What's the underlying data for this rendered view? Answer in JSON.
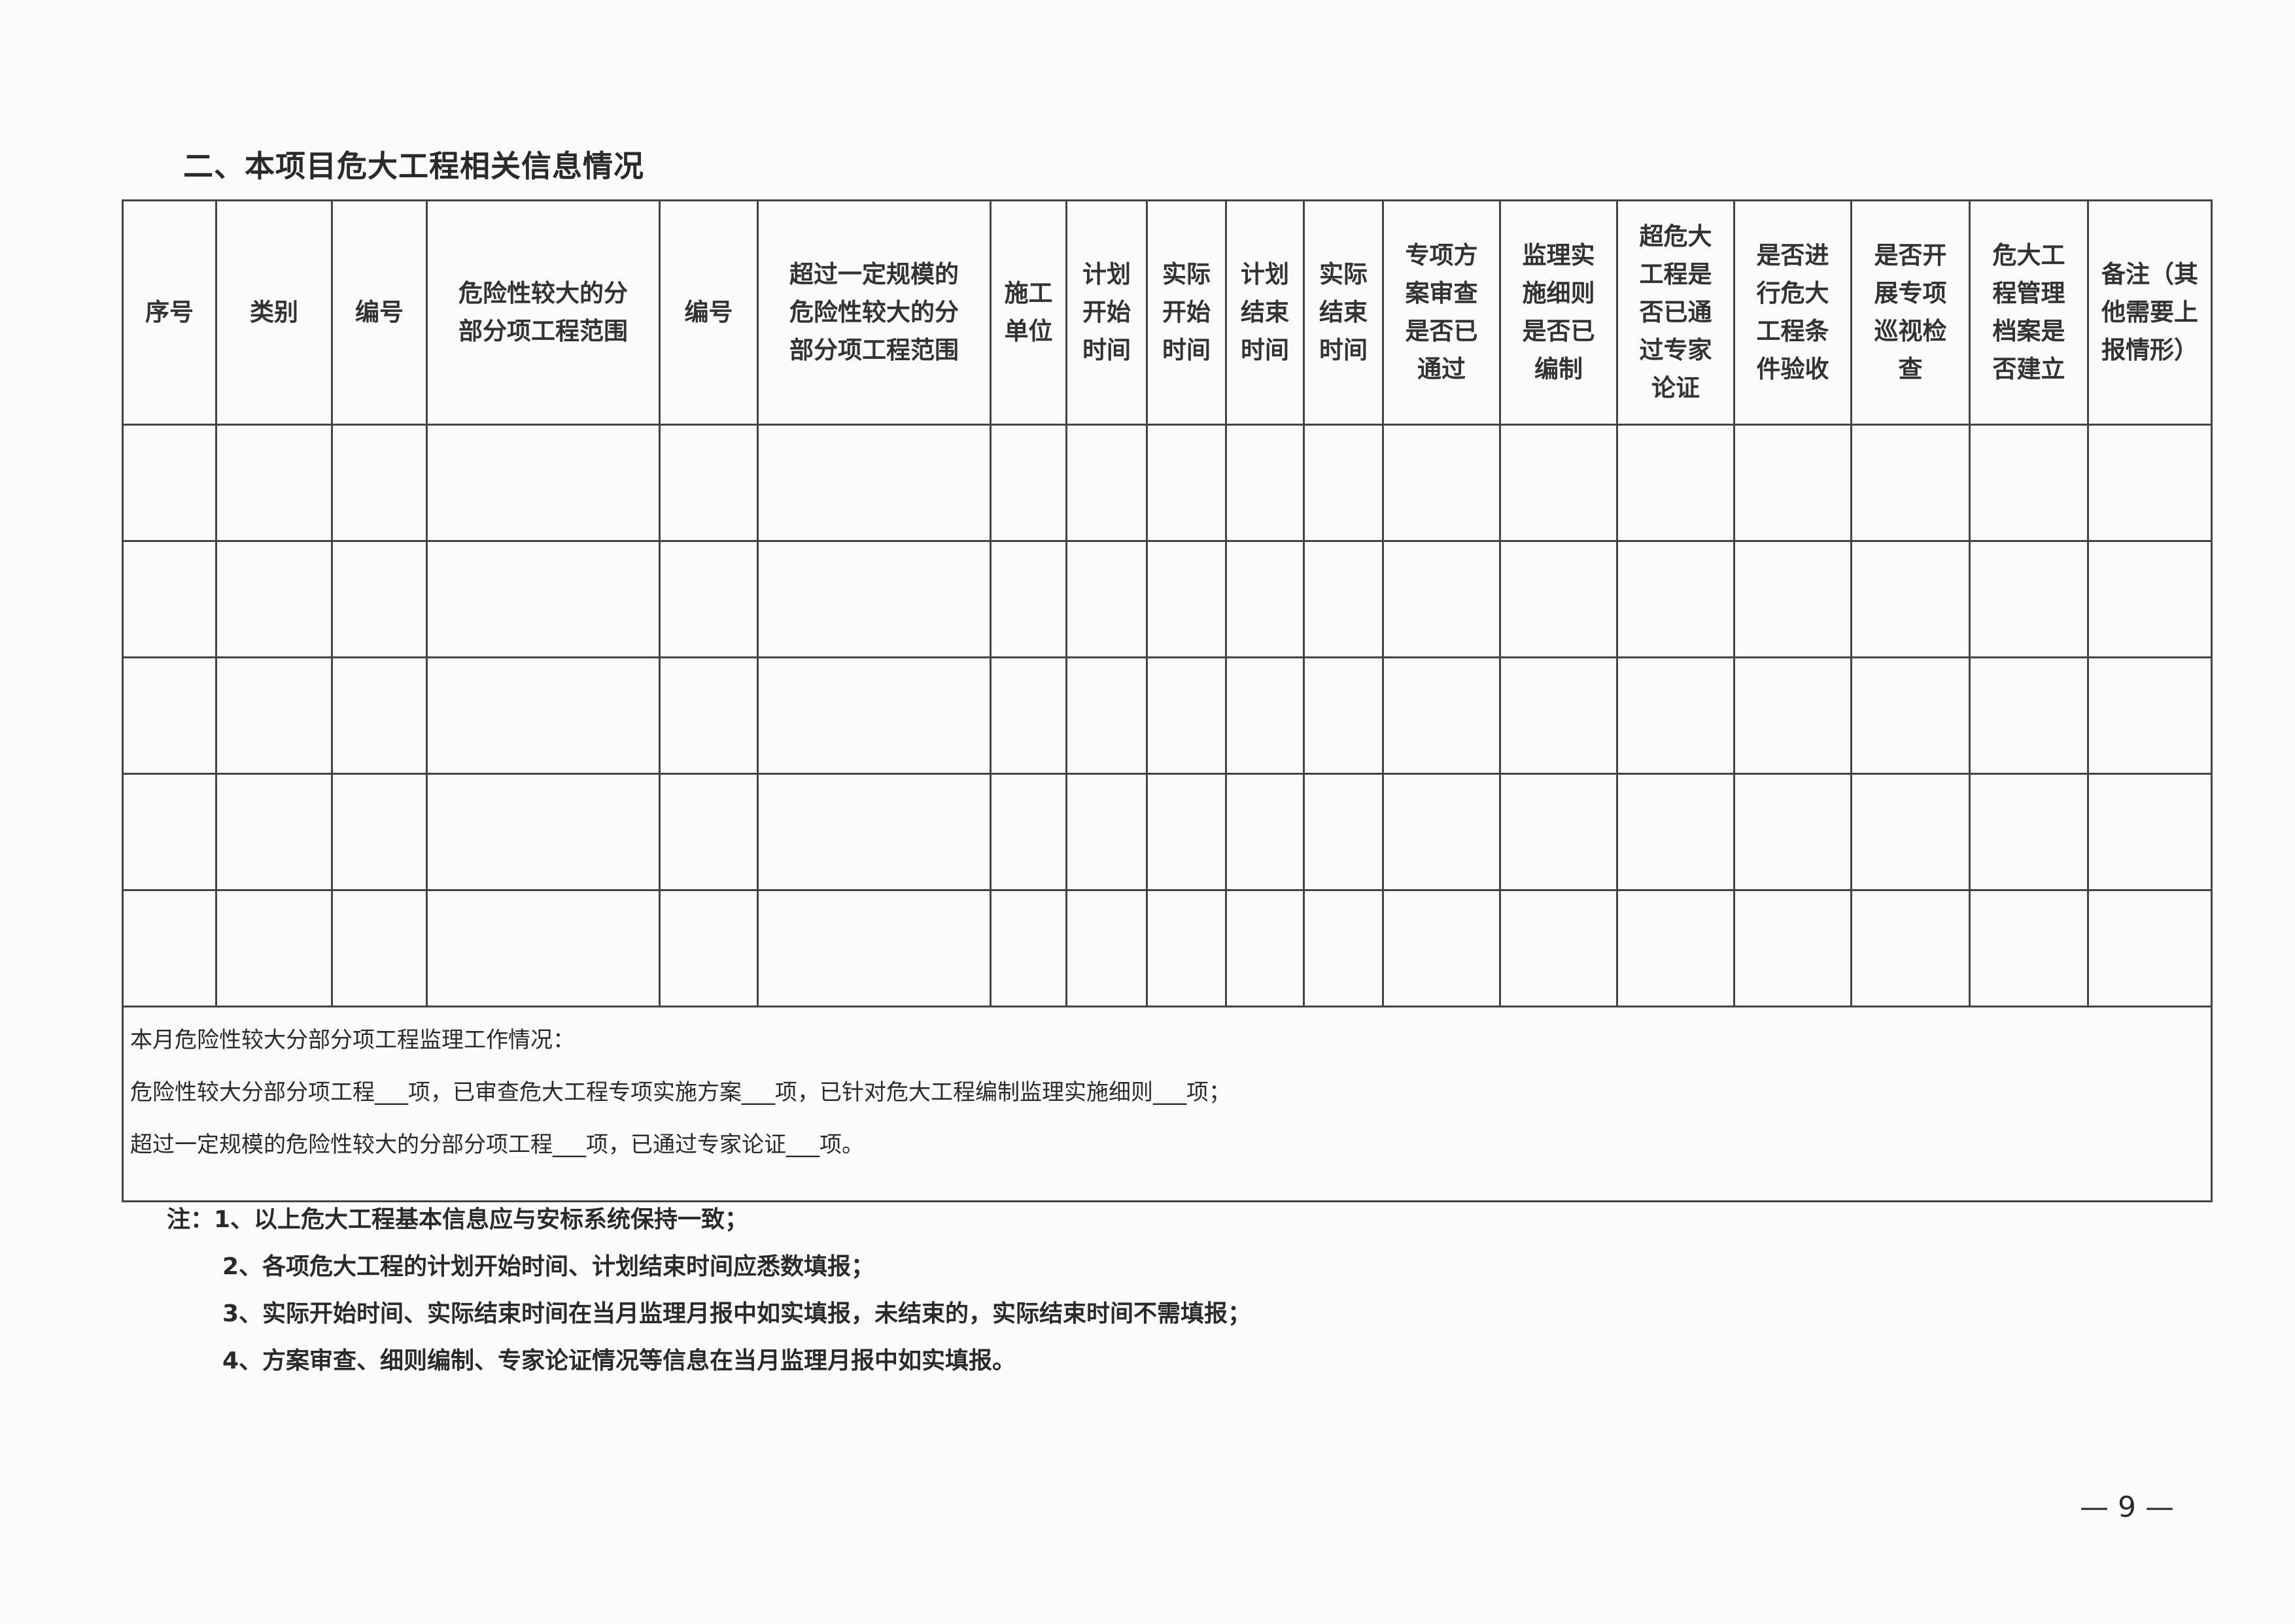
{
  "section_title": "二、本项目危大工程相关信息情况",
  "table": {
    "headers": [
      "序号",
      "类别",
      "编号",
      "危险性较大的分\n部分项工程范围",
      "编号",
      "超过一定规模的\n危险性较大的分\n部分项工程范围",
      "施工\n单位",
      "计划\n开始\n时间",
      "实际\n开始\n时间",
      "计划\n结束\n时间",
      "实际\n结束\n时间",
      "专项方\n案审查\n是否已\n通过",
      "监理实\n施细则\n是否已\n编制",
      "超危大\n工程是\n否已通\n过专家\n论证",
      "是否进\n行危大\n工程条\n件验收",
      "是否开\n展专项\n巡视检\n查",
      "危大工\n程管理\n档案是\n否建立",
      "备注（其\n他需要上\n报情形）"
    ],
    "empty_rows": 5
  },
  "summary": {
    "heading": "本月危险性较大分部分项工程监理工作情况：",
    "line1": "危险性较大分部分项工程___项，已审查危大工程专项实施方案___项，已针对危大工程编制监理实施细则___项；",
    "line2": "超过一定规模的危险性较大的分部分项工程___项，已通过专家论证___项。"
  },
  "notes": [
    "注：1、以上危大工程基本信息应与安标系统保持一致；",
    "2、各项危大工程的计划开始时间、计划结束时间应悉数填报；",
    "3、实际开始时间、实际结束时间在当月监理月报中如实填报，未结束的，实际结束时间不需填报；",
    "4、方案审查、细则编制、专家论证情况等信息在当月监理月报中如实填报。"
  ],
  "page_number": "— 9 —"
}
